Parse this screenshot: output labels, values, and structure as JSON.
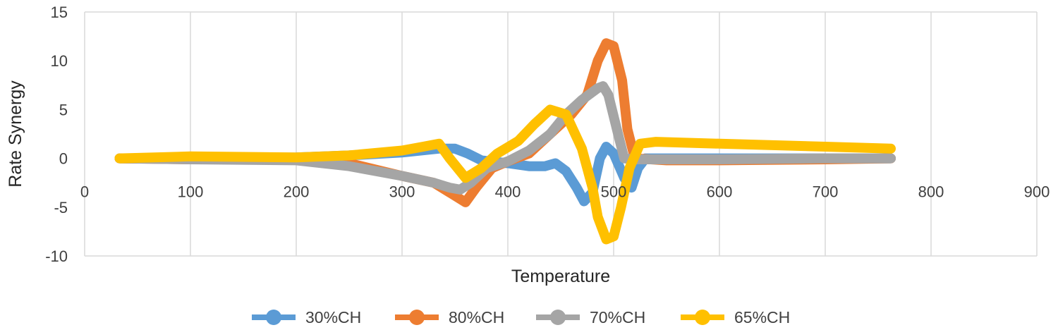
{
  "chart_data": {
    "type": "line",
    "title": "",
    "xlabel": "Temperature",
    "ylabel": "Rate Synergy",
    "xlim": [
      0,
      900
    ],
    "ylim": [
      -10,
      15
    ],
    "xticks": [
      0,
      100,
      200,
      300,
      400,
      500,
      600,
      700,
      800,
      900
    ],
    "yticks": [
      -10,
      -5,
      0,
      5,
      10,
      15
    ],
    "grid": "vertical",
    "legend": "bottom",
    "colors": {
      "grid": "#d9d9d9",
      "tick_text": "#404040",
      "axis_text": "#262626"
    },
    "series": [
      {
        "name": "30%CH",
        "color": "#5b9bd5",
        "points": [
          [
            33,
            0
          ],
          [
            100,
            0
          ],
          [
            200,
            0.1
          ],
          [
            250,
            0.3
          ],
          [
            300,
            0.6
          ],
          [
            335,
            1.0
          ],
          [
            350,
            1.0
          ],
          [
            362,
            0.5
          ],
          [
            375,
            -0.2
          ],
          [
            400,
            -0.5
          ],
          [
            420,
            -0.8
          ],
          [
            435,
            -0.8
          ],
          [
            445,
            -0.5
          ],
          [
            455,
            -1.3
          ],
          [
            465,
            -3.0
          ],
          [
            472,
            -4.4
          ],
          [
            480,
            -3.5
          ],
          [
            487,
            0
          ],
          [
            493,
            1.2
          ],
          [
            500,
            0.5
          ],
          [
            510,
            -2.0
          ],
          [
            517,
            -3.0
          ],
          [
            523,
            -1.0
          ],
          [
            530,
            0
          ],
          [
            600,
            0
          ],
          [
            700,
            0
          ],
          [
            762,
            0
          ]
        ]
      },
      {
        "name": "80%CH",
        "color": "#ed7d31",
        "points": [
          [
            33,
            0
          ],
          [
            100,
            -0.1
          ],
          [
            200,
            -0.1
          ],
          [
            250,
            -0.5
          ],
          [
            300,
            -1.8
          ],
          [
            330,
            -2.5
          ],
          [
            345,
            -3.5
          ],
          [
            360,
            -4.5
          ],
          [
            370,
            -3.0
          ],
          [
            385,
            -1.0
          ],
          [
            400,
            -0.3
          ],
          [
            420,
            0.5
          ],
          [
            440,
            2.5
          ],
          [
            460,
            4.5
          ],
          [
            475,
            6.5
          ],
          [
            485,
            10.0
          ],
          [
            493,
            11.8
          ],
          [
            500,
            11.5
          ],
          [
            508,
            8.0
          ],
          [
            513,
            3.0
          ],
          [
            520,
            0
          ],
          [
            550,
            -0.2
          ],
          [
            600,
            -0.2
          ],
          [
            700,
            -0.1
          ],
          [
            762,
            0
          ]
        ]
      },
      {
        "name": "70%CH",
        "color": "#a5a5a5",
        "points": [
          [
            33,
            0
          ],
          [
            100,
            -0.1
          ],
          [
            200,
            -0.2
          ],
          [
            250,
            -0.8
          ],
          [
            300,
            -1.8
          ],
          [
            330,
            -2.5
          ],
          [
            345,
            -3.0
          ],
          [
            355,
            -3.2
          ],
          [
            365,
            -2.5
          ],
          [
            380,
            -1.0
          ],
          [
            400,
            -0.3
          ],
          [
            420,
            0.8
          ],
          [
            440,
            2.5
          ],
          [
            455,
            4.5
          ],
          [
            470,
            6.0
          ],
          [
            485,
            7.2
          ],
          [
            490,
            7.4
          ],
          [
            495,
            6.5
          ],
          [
            503,
            3.0
          ],
          [
            510,
            0
          ],
          [
            520,
            -0.1
          ],
          [
            600,
            -0.1
          ],
          [
            700,
            0
          ],
          [
            762,
            0
          ]
        ]
      },
      {
        "name": "65%CH",
        "color": "#ffc000",
        "points": [
          [
            33,
            0
          ],
          [
            100,
            0.2
          ],
          [
            200,
            0.1
          ],
          [
            250,
            0.3
          ],
          [
            300,
            0.8
          ],
          [
            320,
            1.2
          ],
          [
            335,
            1.5
          ],
          [
            345,
            0.0
          ],
          [
            360,
            -2.0
          ],
          [
            375,
            -1.0
          ],
          [
            390,
            0.5
          ],
          [
            410,
            1.8
          ],
          [
            425,
            3.5
          ],
          [
            440,
            5.0
          ],
          [
            455,
            4.5
          ],
          [
            470,
            1.0
          ],
          [
            480,
            -3.0
          ],
          [
            485,
            -6.0
          ],
          [
            493,
            -8.3
          ],
          [
            500,
            -8.0
          ],
          [
            507,
            -5.0
          ],
          [
            515,
            -1.0
          ],
          [
            525,
            1.5
          ],
          [
            540,
            1.7
          ],
          [
            600,
            1.5
          ],
          [
            700,
            1.2
          ],
          [
            762,
            1.0
          ]
        ]
      }
    ]
  }
}
